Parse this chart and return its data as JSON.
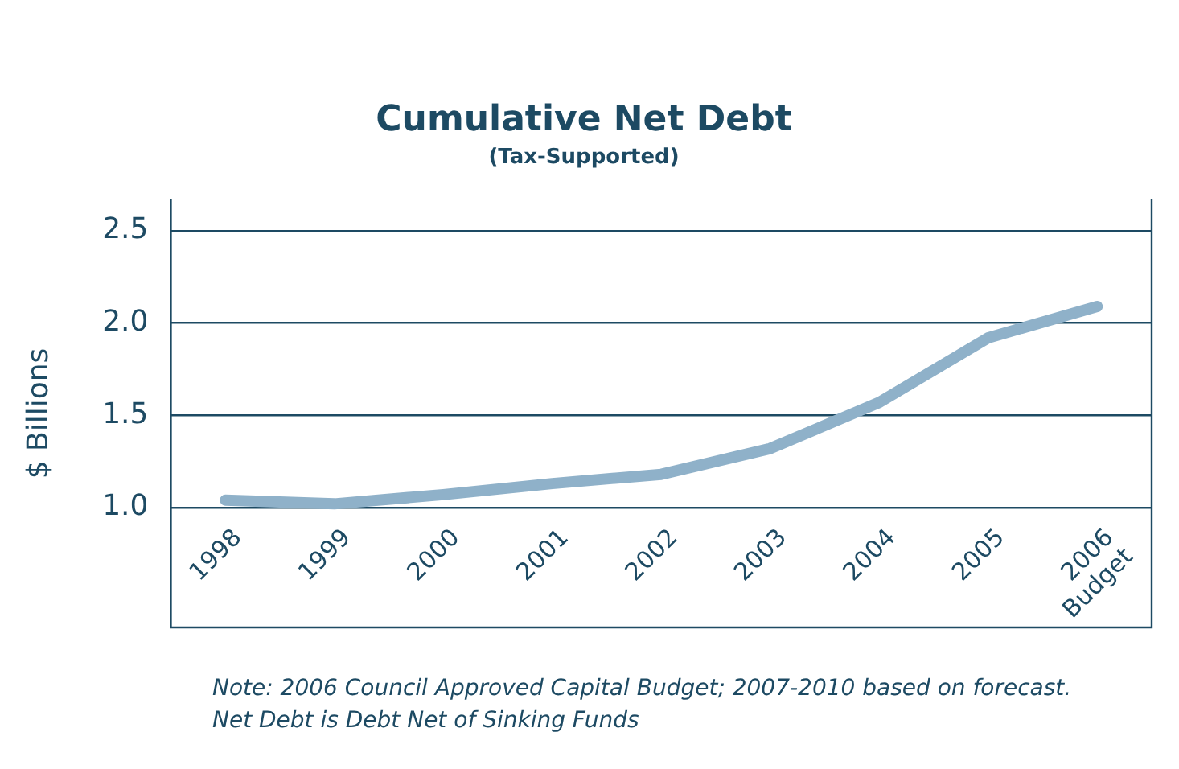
{
  "chart_data": {
    "type": "line",
    "title": "Cumulative Net Debt",
    "subtitle": "(Tax-Supported)",
    "ylabel": "$ Billions",
    "categories": [
      "1998",
      "1999",
      "2000",
      "2001",
      "2002",
      "2003",
      "2004",
      "2005",
      "2006 Budget"
    ],
    "series": [
      {
        "color": "#8fb1c9",
        "values": [
          1.04,
          1.02,
          1.07,
          1.13,
          1.18,
          1.32,
          1.57,
          1.92,
          2.09
        ]
      }
    ],
    "ylim": [
      0.35,
      2.67
    ],
    "yticks": [
      {
        "value": 1.0,
        "label": "1.0"
      },
      {
        "value": 1.5,
        "label": "1.5"
      },
      {
        "value": 2.0,
        "label": "2.0"
      },
      {
        "value": 2.5,
        "label": "2.5"
      }
    ],
    "grid": "y",
    "legend": false,
    "marker": "none",
    "line_style": "solid",
    "annotations": [
      "Note: 2006 Council Approved Capital Budget; 2007-2010 based on forecast.",
      "Net Debt is Debt Net of Sinking Funds"
    ]
  }
}
